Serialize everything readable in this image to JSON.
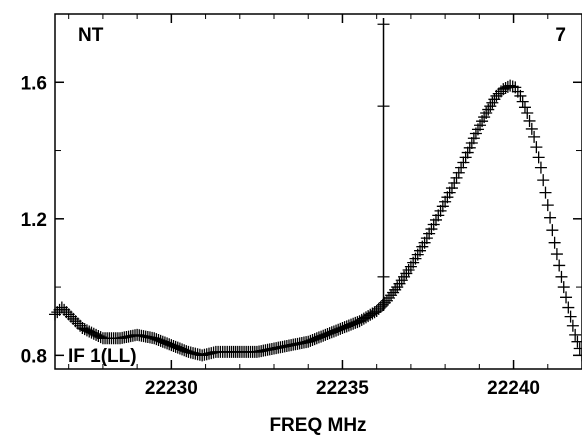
{
  "chart_data": {
    "type": "scatter",
    "title": "",
    "corner_labels": {
      "top_left": "NT",
      "top_right": "7",
      "bottom_left": "IF 1(LL)"
    },
    "xlabel": "FREQ MHz",
    "ylabel": "",
    "xlim": [
      22226.6,
      22242.0
    ],
    "ylim": [
      0.76,
      1.8
    ],
    "x_ticks": [
      22230,
      22235,
      22240
    ],
    "y_ticks": [
      0.8,
      1.2,
      1.6
    ],
    "x_tick_labels": [
      "22230",
      "22235",
      "22240"
    ],
    "y_tick_labels": [
      "0.8",
      "1.2",
      "1.6"
    ],
    "marker": "plus",
    "marker_color": "#000000",
    "vertical_marker": {
      "x": 22236.2,
      "ticks_y": [
        1.77,
        1.53,
        1.03
      ]
    },
    "series": [
      {
        "x": [
          22226.6,
          22226.8,
          22227.0,
          22227.2,
          22227.4,
          22227.6,
          22227.8,
          22228.0,
          22228.5,
          22229.0,
          22229.5,
          22230.0,
          22230.5,
          22230.9,
          22231.3,
          22231.7,
          22232.0,
          22232.5,
          22233.0,
          22233.5,
          22234.0,
          22234.5,
          22235.0,
          22235.5,
          22236.0,
          22236.3,
          22236.6,
          22237.0,
          22237.4,
          22237.8,
          22238.2,
          22238.6,
          22238.9,
          22239.2,
          22239.5,
          22239.7,
          22239.9,
          22240.05,
          22240.2,
          22240.4,
          22240.6,
          22240.8,
          22241.0,
          22241.2,
          22241.4,
          22241.6,
          22241.8,
          22242.0
        ],
        "y": [
          0.92,
          0.94,
          0.92,
          0.9,
          0.88,
          0.87,
          0.86,
          0.85,
          0.85,
          0.86,
          0.85,
          0.83,
          0.81,
          0.8,
          0.81,
          0.81,
          0.81,
          0.81,
          0.82,
          0.83,
          0.84,
          0.86,
          0.88,
          0.9,
          0.93,
          0.96,
          1.0,
          1.06,
          1.13,
          1.21,
          1.29,
          1.38,
          1.45,
          1.51,
          1.56,
          1.58,
          1.59,
          1.585,
          1.56,
          1.51,
          1.44,
          1.35,
          1.24,
          1.13,
          1.03,
          0.94,
          0.86,
          0.8
        ]
      }
    ]
  }
}
